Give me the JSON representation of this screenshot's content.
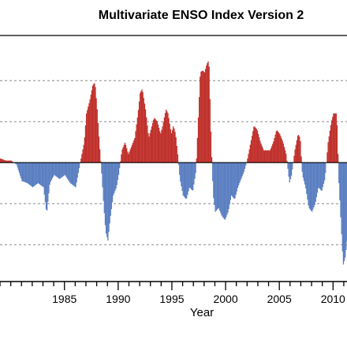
{
  "chart_data": {
    "type": "bar",
    "title": "Multivariate ENSO Index Version 2",
    "xlabel": "Year",
    "ylabel": "",
    "xlim": [
      1979.0,
      2011.3
    ],
    "ylim": [
      -2.9,
      3.1
    ],
    "x_ticks": [
      {
        "value": 1985,
        "label": "1985"
      },
      {
        "value": 1990,
        "label": "1990"
      },
      {
        "value": 1995,
        "label": "1995"
      },
      {
        "value": 2000,
        "label": "2000"
      },
      {
        "value": 2005,
        "label": "2005"
      },
      {
        "value": 2010,
        "label": "2010"
      }
    ],
    "minor_tick_step": 1,
    "y_grid": [
      -2,
      -1,
      1,
      2
    ],
    "zero_line": 0,
    "positive_color": "#c0312c",
    "negative_color": "#5b7fc1",
    "monthly_anomaly": [
      {
        "t": 1979.0,
        "v": 0.1
      },
      {
        "t": 1979.5,
        "v": 0.05
      },
      {
        "t": 1980.0,
        "v": 0.05
      },
      {
        "t": 1980.5,
        "v": -0.05
      },
      {
        "t": 1981.0,
        "v": -0.45
      },
      {
        "t": 1981.5,
        "v": -0.5
      },
      {
        "t": 1982.0,
        "v": -0.6
      },
      {
        "t": 1982.5,
        "v": -0.5
      },
      {
        "t": 1983.0,
        "v": -0.6
      },
      {
        "t": 1983.3,
        "v": -1.25
      },
      {
        "t": 1983.6,
        "v": -0.5
      },
      {
        "t": 1984.0,
        "v": -0.3
      },
      {
        "t": 1984.5,
        "v": -0.4
      },
      {
        "t": 1985.0,
        "v": -0.3
      },
      {
        "t": 1985.5,
        "v": -0.5
      },
      {
        "t": 1986.0,
        "v": -0.6
      },
      {
        "t": 1986.5,
        "v": 0.1
      },
      {
        "t": 1986.8,
        "v": 0.5
      },
      {
        "t": 1987.0,
        "v": 1.2
      },
      {
        "t": 1987.3,
        "v": 1.5
      },
      {
        "t": 1987.6,
        "v": 1.9
      },
      {
        "t": 1987.8,
        "v": 1.95
      },
      {
        "t": 1988.0,
        "v": 1.3
      },
      {
        "t": 1988.2,
        "v": 0.5
      },
      {
        "t": 1988.4,
        "v": -0.2
      },
      {
        "t": 1988.6,
        "v": -1.0
      },
      {
        "t": 1988.8,
        "v": -1.7
      },
      {
        "t": 1989.0,
        "v": -1.9
      },
      {
        "t": 1989.2,
        "v": -1.4
      },
      {
        "t": 1989.5,
        "v": -0.8
      },
      {
        "t": 1989.8,
        "v": -0.6
      },
      {
        "t": 1990.0,
        "v": -0.3
      },
      {
        "t": 1990.3,
        "v": 0.3
      },
      {
        "t": 1990.6,
        "v": 0.5
      },
      {
        "t": 1990.9,
        "v": 0.2
      },
      {
        "t": 1991.2,
        "v": 0.4
      },
      {
        "t": 1991.5,
        "v": 0.6
      },
      {
        "t": 1991.8,
        "v": 1.2
      },
      {
        "t": 1992.0,
        "v": 1.7
      },
      {
        "t": 1992.2,
        "v": 1.8
      },
      {
        "t": 1992.5,
        "v": 1.3
      },
      {
        "t": 1992.8,
        "v": 0.6
      },
      {
        "t": 1993.0,
        "v": 0.8
      },
      {
        "t": 1993.3,
        "v": 1.1
      },
      {
        "t": 1993.6,
        "v": 1.0
      },
      {
        "t": 1993.9,
        "v": 0.7
      },
      {
        "t": 1994.1,
        "v": 0.9
      },
      {
        "t": 1994.4,
        "v": 1.3
      },
      {
        "t": 1994.6,
        "v": 1.2
      },
      {
        "t": 1994.9,
        "v": 0.7
      },
      {
        "t": 1995.1,
        "v": 0.9
      },
      {
        "t": 1995.3,
        "v": 0.7
      },
      {
        "t": 1995.5,
        "v": 0.2
      },
      {
        "t": 1995.7,
        "v": -0.4
      },
      {
        "t": 1996.0,
        "v": -0.8
      },
      {
        "t": 1996.3,
        "v": -0.9
      },
      {
        "t": 1996.6,
        "v": -0.6
      },
      {
        "t": 1996.9,
        "v": -0.7
      },
      {
        "t": 1997.2,
        "v": -0.2
      },
      {
        "t": 1997.4,
        "v": 1.0
      },
      {
        "t": 1997.6,
        "v": 2.2
      },
      {
        "t": 1997.8,
        "v": 2.25
      },
      {
        "t": 1998.0,
        "v": 2.2
      },
      {
        "t": 1998.2,
        "v": 2.4
      },
      {
        "t": 1998.4,
        "v": 2.5
      },
      {
        "t": 1998.6,
        "v": 0.6
      },
      {
        "t": 1998.8,
        "v": -0.8
      },
      {
        "t": 1999.0,
        "v": -1.2
      },
      {
        "t": 1999.3,
        "v": -1.1
      },
      {
        "t": 1999.6,
        "v": -1.3
      },
      {
        "t": 1999.9,
        "v": -1.4
      },
      {
        "t": 2000.2,
        "v": -1.2
      },
      {
        "t": 2000.5,
        "v": -0.8
      },
      {
        "t": 2000.8,
        "v": -0.9
      },
      {
        "t": 2001.1,
        "v": -0.6
      },
      {
        "t": 2001.4,
        "v": -0.4
      },
      {
        "t": 2001.7,
        "v": -0.2
      },
      {
        "t": 2002.0,
        "v": 0.1
      },
      {
        "t": 2002.3,
        "v": 0.5
      },
      {
        "t": 2002.6,
        "v": 0.9
      },
      {
        "t": 2002.9,
        "v": 0.8
      },
      {
        "t": 2003.2,
        "v": 0.5
      },
      {
        "t": 2003.5,
        "v": 0.3
      },
      {
        "t": 2003.8,
        "v": 0.3
      },
      {
        "t": 2004.1,
        "v": 0.3
      },
      {
        "t": 2004.4,
        "v": 0.5
      },
      {
        "t": 2004.7,
        "v": 0.8
      },
      {
        "t": 2005.0,
        "v": 0.7
      },
      {
        "t": 2005.3,
        "v": 0.5
      },
      {
        "t": 2005.6,
        "v": 0.2
      },
      {
        "t": 2005.9,
        "v": -0.5
      },
      {
        "t": 2006.1,
        "v": -0.3
      },
      {
        "t": 2006.4,
        "v": 0.3
      },
      {
        "t": 2006.7,
        "v": 0.7
      },
      {
        "t": 2006.9,
        "v": 0.6
      },
      {
        "t": 2007.1,
        "v": -0.3
      },
      {
        "t": 2007.4,
        "v": -0.6
      },
      {
        "t": 2007.7,
        "v": -1.1
      },
      {
        "t": 2008.0,
        "v": -1.2
      },
      {
        "t": 2008.3,
        "v": -1.0
      },
      {
        "t": 2008.6,
        "v": -0.6
      },
      {
        "t": 2008.9,
        "v": -0.7
      },
      {
        "t": 2009.2,
        "v": -0.4
      },
      {
        "t": 2009.5,
        "v": 0.5
      },
      {
        "t": 2009.8,
        "v": 1.0
      },
      {
        "t": 2010.0,
        "v": 1.2
      },
      {
        "t": 2010.3,
        "v": 1.2
      },
      {
        "t": 2010.5,
        "v": -0.5
      },
      {
        "t": 2010.7,
        "v": -1.5
      },
      {
        "t": 2010.9,
        "v": -2.5
      },
      {
        "t": 2011.1,
        "v": -2.3
      },
      {
        "t": 2011.3,
        "v": -1.8
      }
    ]
  }
}
